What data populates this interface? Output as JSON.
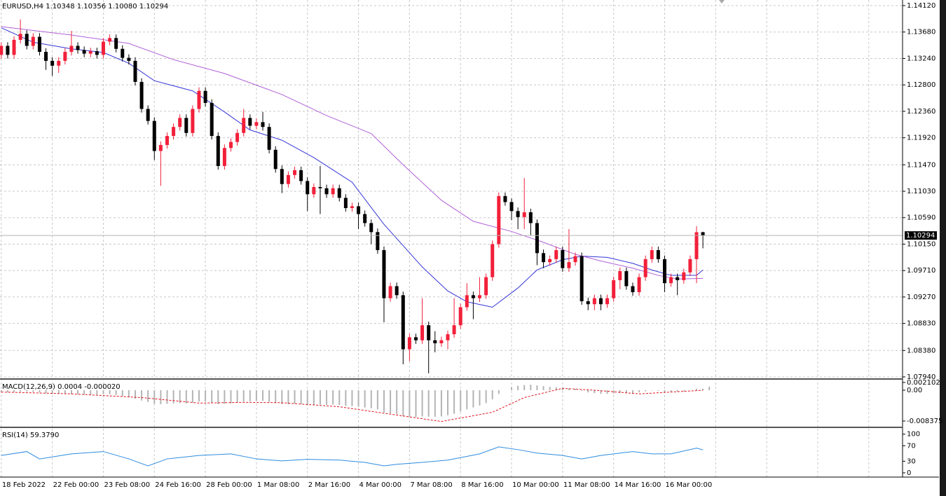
{
  "chart_data": [
    {
      "type": "candlestick",
      "title": "EURUSD,H4",
      "open": [
        1.133,
        1.1345,
        1.133,
        1.1355,
        1.1365,
        1.1345,
        1.136,
        1.1335,
        1.132,
        1.1312,
        1.132,
        1.1335,
        1.1345,
        1.1338,
        1.1332,
        1.1336,
        1.133,
        1.1352,
        1.1358,
        1.134,
        1.1325,
        1.132,
        1.1285,
        1.124,
        1.122,
        1.117,
        1.118,
        1.1195,
        1.121,
        1.1225,
        1.12,
        1.124,
        1.127,
        1.125,
        1.1195,
        1.1145,
        1.1175,
        1.1185,
        1.12,
        1.1225,
        1.1212,
        1.1218,
        1.121,
        1.1172,
        1.114,
        1.1115,
        1.113,
        1.1138,
        1.112,
        1.1098,
        1.111,
        1.1108,
        1.1098,
        1.1108,
        1.1092,
        1.1075,
        1.1078,
        1.1065,
        1.105,
        1.1035,
        1.1005,
        1.0925,
        1.0945,
        1.093,
        1.084,
        1.086,
        1.0855,
        1.088,
        1.0855,
        1.085,
        1.0855,
        1.0865,
        1.088,
        1.091,
        1.093,
        1.0925,
        1.093,
        1.096,
        1.1015,
        1.1095,
        1.1085,
        1.107,
        1.106,
        1.1068,
        1.105,
        1.1,
        1.0985,
        1.099,
        1.1005,
        1.0975,
        1.0985,
        1.0995,
        1.092,
        1.0915,
        1.0925,
        1.0915,
        1.0925,
        1.0955,
        1.097,
        1.0945,
        1.0935,
        1.096,
        1.099,
        1.1005,
        1.099,
        1.095,
        1.096,
        1.0955,
        1.0968,
        1.099,
        1.10348
      ],
      "high": [
        1.1351,
        1.1351,
        1.1361,
        1.1389,
        1.1371,
        1.1366,
        1.1366,
        1.1341,
        1.1326,
        1.1326,
        1.1341,
        1.137,
        1.1351,
        1.1344,
        1.1342,
        1.1342,
        1.1358,
        1.1364,
        1.1364,
        1.1346,
        1.1331,
        1.1326,
        1.1291,
        1.1246,
        1.1226,
        1.1186,
        1.1201,
        1.1216,
        1.1231,
        1.1231,
        1.1246,
        1.1276,
        1.1276,
        1.1256,
        1.1201,
        1.1181,
        1.1191,
        1.1206,
        1.124,
        1.1231,
        1.1224,
        1.1235,
        1.1216,
        1.1178,
        1.1146,
        1.1136,
        1.1144,
        1.1144,
        1.1126,
        1.1116,
        1.1145,
        1.1114,
        1.1114,
        1.1114,
        1.1098,
        1.1084,
        1.1084,
        1.1071,
        1.1056,
        1.1041,
        1.1011,
        1.0951,
        1.0951,
        1.0936,
        1.0866,
        1.0866,
        1.0925,
        1.0886,
        1.087,
        1.0861,
        1.0871,
        1.0925,
        1.0916,
        1.095,
        1.0936,
        1.096,
        1.0966,
        1.1021,
        1.1101,
        1.1101,
        1.1091,
        1.1076,
        1.1125,
        1.1074,
        1.1056,
        1.1006,
        1.0996,
        1.1011,
        1.1011,
        1.104,
        1.1001,
        1.1001,
        1.0926,
        1.0931,
        1.0931,
        1.0931,
        1.0961,
        1.0976,
        1.0976,
        1.0951,
        1.0966,
        1.0996,
        1.1011,
        1.1011,
        1.0996,
        1.0966,
        1.0966,
        1.0974,
        1.0996,
        1.1045,
        1.10356
      ],
      "low": [
        1.1324,
        1.1324,
        1.1324,
        1.1349,
        1.1339,
        1.1339,
        1.1329,
        1.1305,
        1.1295,
        1.13,
        1.1314,
        1.1329,
        1.1332,
        1.1326,
        1.1326,
        1.1324,
        1.1324,
        1.1346,
        1.1334,
        1.1319,
        1.1314,
        1.1279,
        1.1234,
        1.1214,
        1.1155,
        1.1112,
        1.1174,
        1.1189,
        1.1204,
        1.1194,
        1.1194,
        1.1234,
        1.1244,
        1.1189,
        1.1139,
        1.1139,
        1.1169,
        1.1179,
        1.1194,
        1.1206,
        1.1206,
        1.1204,
        1.1166,
        1.1134,
        1.11,
        1.1109,
        1.1124,
        1.1114,
        1.107,
        1.1092,
        1.1065,
        1.1092,
        1.1092,
        1.1086,
        1.1069,
        1.1069,
        1.104,
        1.1044,
        1.1015,
        1.0999,
        1.0885,
        1.0919,
        1.0924,
        1.0815,
        1.082,
        1.0849,
        1.0849,
        1.08,
        1.0835,
        1.0844,
        1.084,
        1.0859,
        1.0874,
        1.0904,
        1.089,
        1.0919,
        1.0924,
        1.0954,
        1.1009,
        1.1079,
        1.1055,
        1.104,
        1.104,
        1.103,
        1.098,
        1.0975,
        1.0979,
        1.0984,
        1.0969,
        1.0969,
        1.0979,
        1.0914,
        1.0905,
        1.0905,
        1.0905,
        1.0909,
        1.0919,
        1.094,
        1.0939,
        1.0929,
        1.0929,
        1.0954,
        1.0984,
        1.0984,
        1.0935,
        1.0944,
        1.093,
        1.0949,
        1.0962,
        1.095,
        1.1008
      ],
      "close": [
        1.1345,
        1.133,
        1.1355,
        1.1365,
        1.1345,
        1.136,
        1.1335,
        1.132,
        1.1312,
        1.132,
        1.1335,
        1.1345,
        1.1338,
        1.1332,
        1.1336,
        1.133,
        1.1352,
        1.1358,
        1.134,
        1.1325,
        1.132,
        1.1285,
        1.124,
        1.122,
        1.117,
        1.118,
        1.1195,
        1.121,
        1.1225,
        1.12,
        1.124,
        1.127,
        1.125,
        1.1195,
        1.1145,
        1.1175,
        1.1185,
        1.12,
        1.1225,
        1.1212,
        1.1218,
        1.121,
        1.1172,
        1.114,
        1.1115,
        1.113,
        1.1138,
        1.112,
        1.1098,
        1.111,
        1.1108,
        1.1098,
        1.1108,
        1.1092,
        1.1075,
        1.1078,
        1.1065,
        1.105,
        1.1035,
        1.1005,
        1.0925,
        1.0945,
        1.093,
        1.084,
        1.086,
        1.0855,
        1.088,
        1.0855,
        1.085,
        1.0855,
        1.0865,
        1.088,
        1.091,
        1.093,
        1.0925,
        1.093,
        1.096,
        1.1015,
        1.1095,
        1.1085,
        1.107,
        1.106,
        1.1068,
        1.105,
        1.1,
        1.0985,
        1.099,
        1.1005,
        1.0975,
        1.0985,
        1.0995,
        1.092,
        1.0915,
        1.0925,
        1.0915,
        1.0925,
        1.0955,
        1.097,
        1.0945,
        1.0935,
        1.096,
        1.099,
        1.1005,
        1.099,
        1.095,
        1.096,
        1.0955,
        1.0968,
        1.099,
        1.10348,
        1.10294
      ],
      "last_labels": [
        "1.10348",
        "1.10356",
        "1.10080",
        "1.10294"
      ],
      "up_color": "#f2203a",
      "down_color": "#000000",
      "lines": [
        {
          "color": "#3434d8",
          "x": [
            0,
            5,
            11,
            16,
            20,
            24,
            30,
            35,
            39,
            44,
            49,
            55,
            60,
            66,
            70,
            73,
            77,
            81,
            84,
            88,
            91,
            95,
            99,
            102,
            105,
            109,
            110
          ],
          "values": [
            1.1375,
            1.1351,
            1.134,
            1.1334,
            1.1316,
            1.1287,
            1.127,
            1.1235,
            1.1205,
            1.1188,
            1.1159,
            1.1118,
            1.1048,
            1.0977,
            1.0937,
            1.0919,
            1.091,
            1.0942,
            1.0972,
            1.0989,
            1.0995,
            1.0993,
            1.0983,
            1.0972,
            1.0963,
            1.0963,
            1.0972
          ]
        },
        {
          "color": "#b060d8",
          "x": [
            0,
            11,
            20,
            27,
            35,
            44,
            51,
            58,
            63,
            69,
            74,
            80,
            85,
            90,
            94,
            99,
            103,
            106,
            110
          ],
          "values": [
            1.1377,
            1.1363,
            1.1349,
            1.1322,
            1.1299,
            1.1264,
            1.1229,
            1.1199,
            1.1147,
            1.1088,
            1.1053,
            1.1036,
            1.1018,
            1.0998,
            1.0987,
            1.0975,
            1.0963,
            1.0957,
            1.0958
          ]
        }
      ],
      "xlim": [
        -0.2,
        141.3
      ],
      "ylim": [
        1.07905,
        1.14213
      ],
      "xticks": [
        {
          "value": 0,
          "label": "18 Feb 2022"
        },
        {
          "value": 8,
          "label": "22 Feb 00:00"
        },
        {
          "value": 16,
          "label": "23 Feb 08:00"
        },
        {
          "value": 24,
          "label": "24 Feb 16:00"
        },
        {
          "value": 32,
          "label": "28 Feb 00:00"
        },
        {
          "value": 40,
          "label": "1 Mar 08:00"
        },
        {
          "value": 48,
          "label": "2 Mar 16:00"
        },
        {
          "value": 56,
          "label": "4 Mar 00:00"
        },
        {
          "value": 64,
          "label": "7 Mar 08:00"
        },
        {
          "value": 72,
          "label": "8 Mar 16:00"
        },
        {
          "value": 80,
          "label": "10 Mar 00:00"
        },
        {
          "value": 88,
          "label": "11 Mar 08:00"
        },
        {
          "value": 96,
          "label": "14 Mar 16:00"
        },
        {
          "value": 104,
          "label": "16 Mar 00:00"
        }
      ],
      "yticks": [
        {
          "value": 1.1412,
          "label": "1.14120"
        },
        {
          "value": 1.1368,
          "label": "1.13680"
        },
        {
          "value": 1.1324,
          "label": "1.13240"
        },
        {
          "value": 1.128,
          "label": "1.12800"
        },
        {
          "value": 1.1236,
          "label": "1.12360"
        },
        {
          "value": 1.1192,
          "label": "1.11920"
        },
        {
          "value": 1.1147,
          "label": "1.11470"
        },
        {
          "value": 1.1103,
          "label": "1.11030"
        },
        {
          "value": 1.1059,
          "label": "1.10590"
        },
        {
          "value": 1.1015,
          "label": "1.10150"
        },
        {
          "value": 1.0971,
          "label": "1.09710"
        },
        {
          "value": 1.0927,
          "label": "1.09270"
        },
        {
          "value": 1.0883,
          "label": "1.08830"
        },
        {
          "value": 1.0838,
          "label": "1.08380"
        },
        {
          "value": 1.0794,
          "label": "1.07940"
        }
      ],
      "grid": true
    },
    {
      "type": "macd",
      "title": "MACD(12,26,9)",
      "histogram": [
        -0.0005,
        -0.0006,
        -0.0005,
        -0.0004,
        -0.0004,
        -0.0005,
        -0.0006,
        -0.0008,
        -0.001,
        -0.001,
        -0.001,
        -0.0011,
        -0.0011,
        -0.0012,
        -0.0012,
        -0.0012,
        -0.0011,
        -0.0011,
        -0.0013,
        -0.0016,
        -0.0019,
        -0.0023,
        -0.0028,
        -0.0032,
        -0.0037,
        -0.0038,
        -0.0037,
        -0.0036,
        -0.0035,
        -0.0036,
        -0.0034,
        -0.0031,
        -0.0031,
        -0.0034,
        -0.0038,
        -0.0037,
        -0.0036,
        -0.0034,
        -0.0031,
        -0.003,
        -0.0029,
        -0.0029,
        -0.0032,
        -0.0035,
        -0.0038,
        -0.0038,
        -0.0037,
        -0.0038,
        -0.004,
        -0.0039,
        -0.0039,
        -0.004,
        -0.0039,
        -0.004,
        -0.0042,
        -0.0043,
        -0.0045,
        -0.0047,
        -0.0049,
        -0.0052,
        -0.006,
        -0.0063,
        -0.0065,
        -0.0071,
        -0.0072,
        -0.0073,
        -0.0071,
        -0.0072,
        -0.0072,
        -0.0071,
        -0.0068,
        -0.0064,
        -0.0058,
        -0.0052,
        -0.0047,
        -0.0042,
        -0.0035,
        -0.0025,
        -0.001,
        0.0,
        0.0008,
        0.0012,
        0.0014,
        0.0015,
        0.0013,
        0.0011,
        0.0009,
        0.0008,
        0.0006,
        0.0005,
        0.0004,
        -0.0002,
        -0.0006,
        -0.0008,
        -0.001,
        -0.001,
        -0.0009,
        -0.0008,
        -0.0008,
        -0.0008,
        -0.0006,
        -0.0003,
        -0.0001,
        -0.0002,
        -0.0005,
        -0.0005,
        -0.0004,
        -0.0003,
        0.0,
        0.0004,
        0.0004,
        0.000958
      ],
      "hist_color": "#b4b4b4",
      "signal": {
        "color": "#e0141e",
        "x": [
          0,
          11,
          22,
          31,
          38,
          44,
          53,
          61,
          69,
          77,
          82,
          88,
          93,
          100,
          105,
          110
        ],
        "values": [
          -0.0005,
          -0.001,
          -0.002,
          -0.0035,
          -0.0033,
          -0.0034,
          -0.0045,
          -0.0065,
          -0.0085,
          -0.006,
          -0.002,
          0.0005,
          0.0,
          -0.001,
          -0.0005,
          -2e-05
        ]
      },
      "signal_last_label": "-0.000020",
      "ylim": [
        -0.0099,
        0.00266
      ],
      "yticks": [
        0.002102,
        {
          "value": 0,
          "label": "0.00"
        },
        -0.008375
      ]
    },
    {
      "type": "line",
      "title": "RSI(14)",
      "color": "#2e8be0",
      "x": [
        0,
        4,
        6,
        11,
        16,
        20,
        23,
        26,
        31,
        36,
        40,
        44,
        48,
        53,
        57,
        60,
        62,
        66,
        70,
        75,
        78,
        81,
        84,
        88,
        91,
        94,
        99,
        102,
        105,
        109,
        110
      ],
      "values": [
        45,
        55,
        36,
        49,
        55,
        36,
        18,
        36,
        45,
        49,
        36,
        31,
        35,
        33,
        27,
        18,
        22,
        27,
        33,
        49,
        67,
        60,
        51,
        45,
        36,
        45,
        55,
        49,
        49,
        64,
        59.379
      ],
      "last_label": "59.3790",
      "ylim": [
        -11,
        114
      ],
      "yticks": [
        100,
        70,
        30,
        0
      ]
    }
  ]
}
